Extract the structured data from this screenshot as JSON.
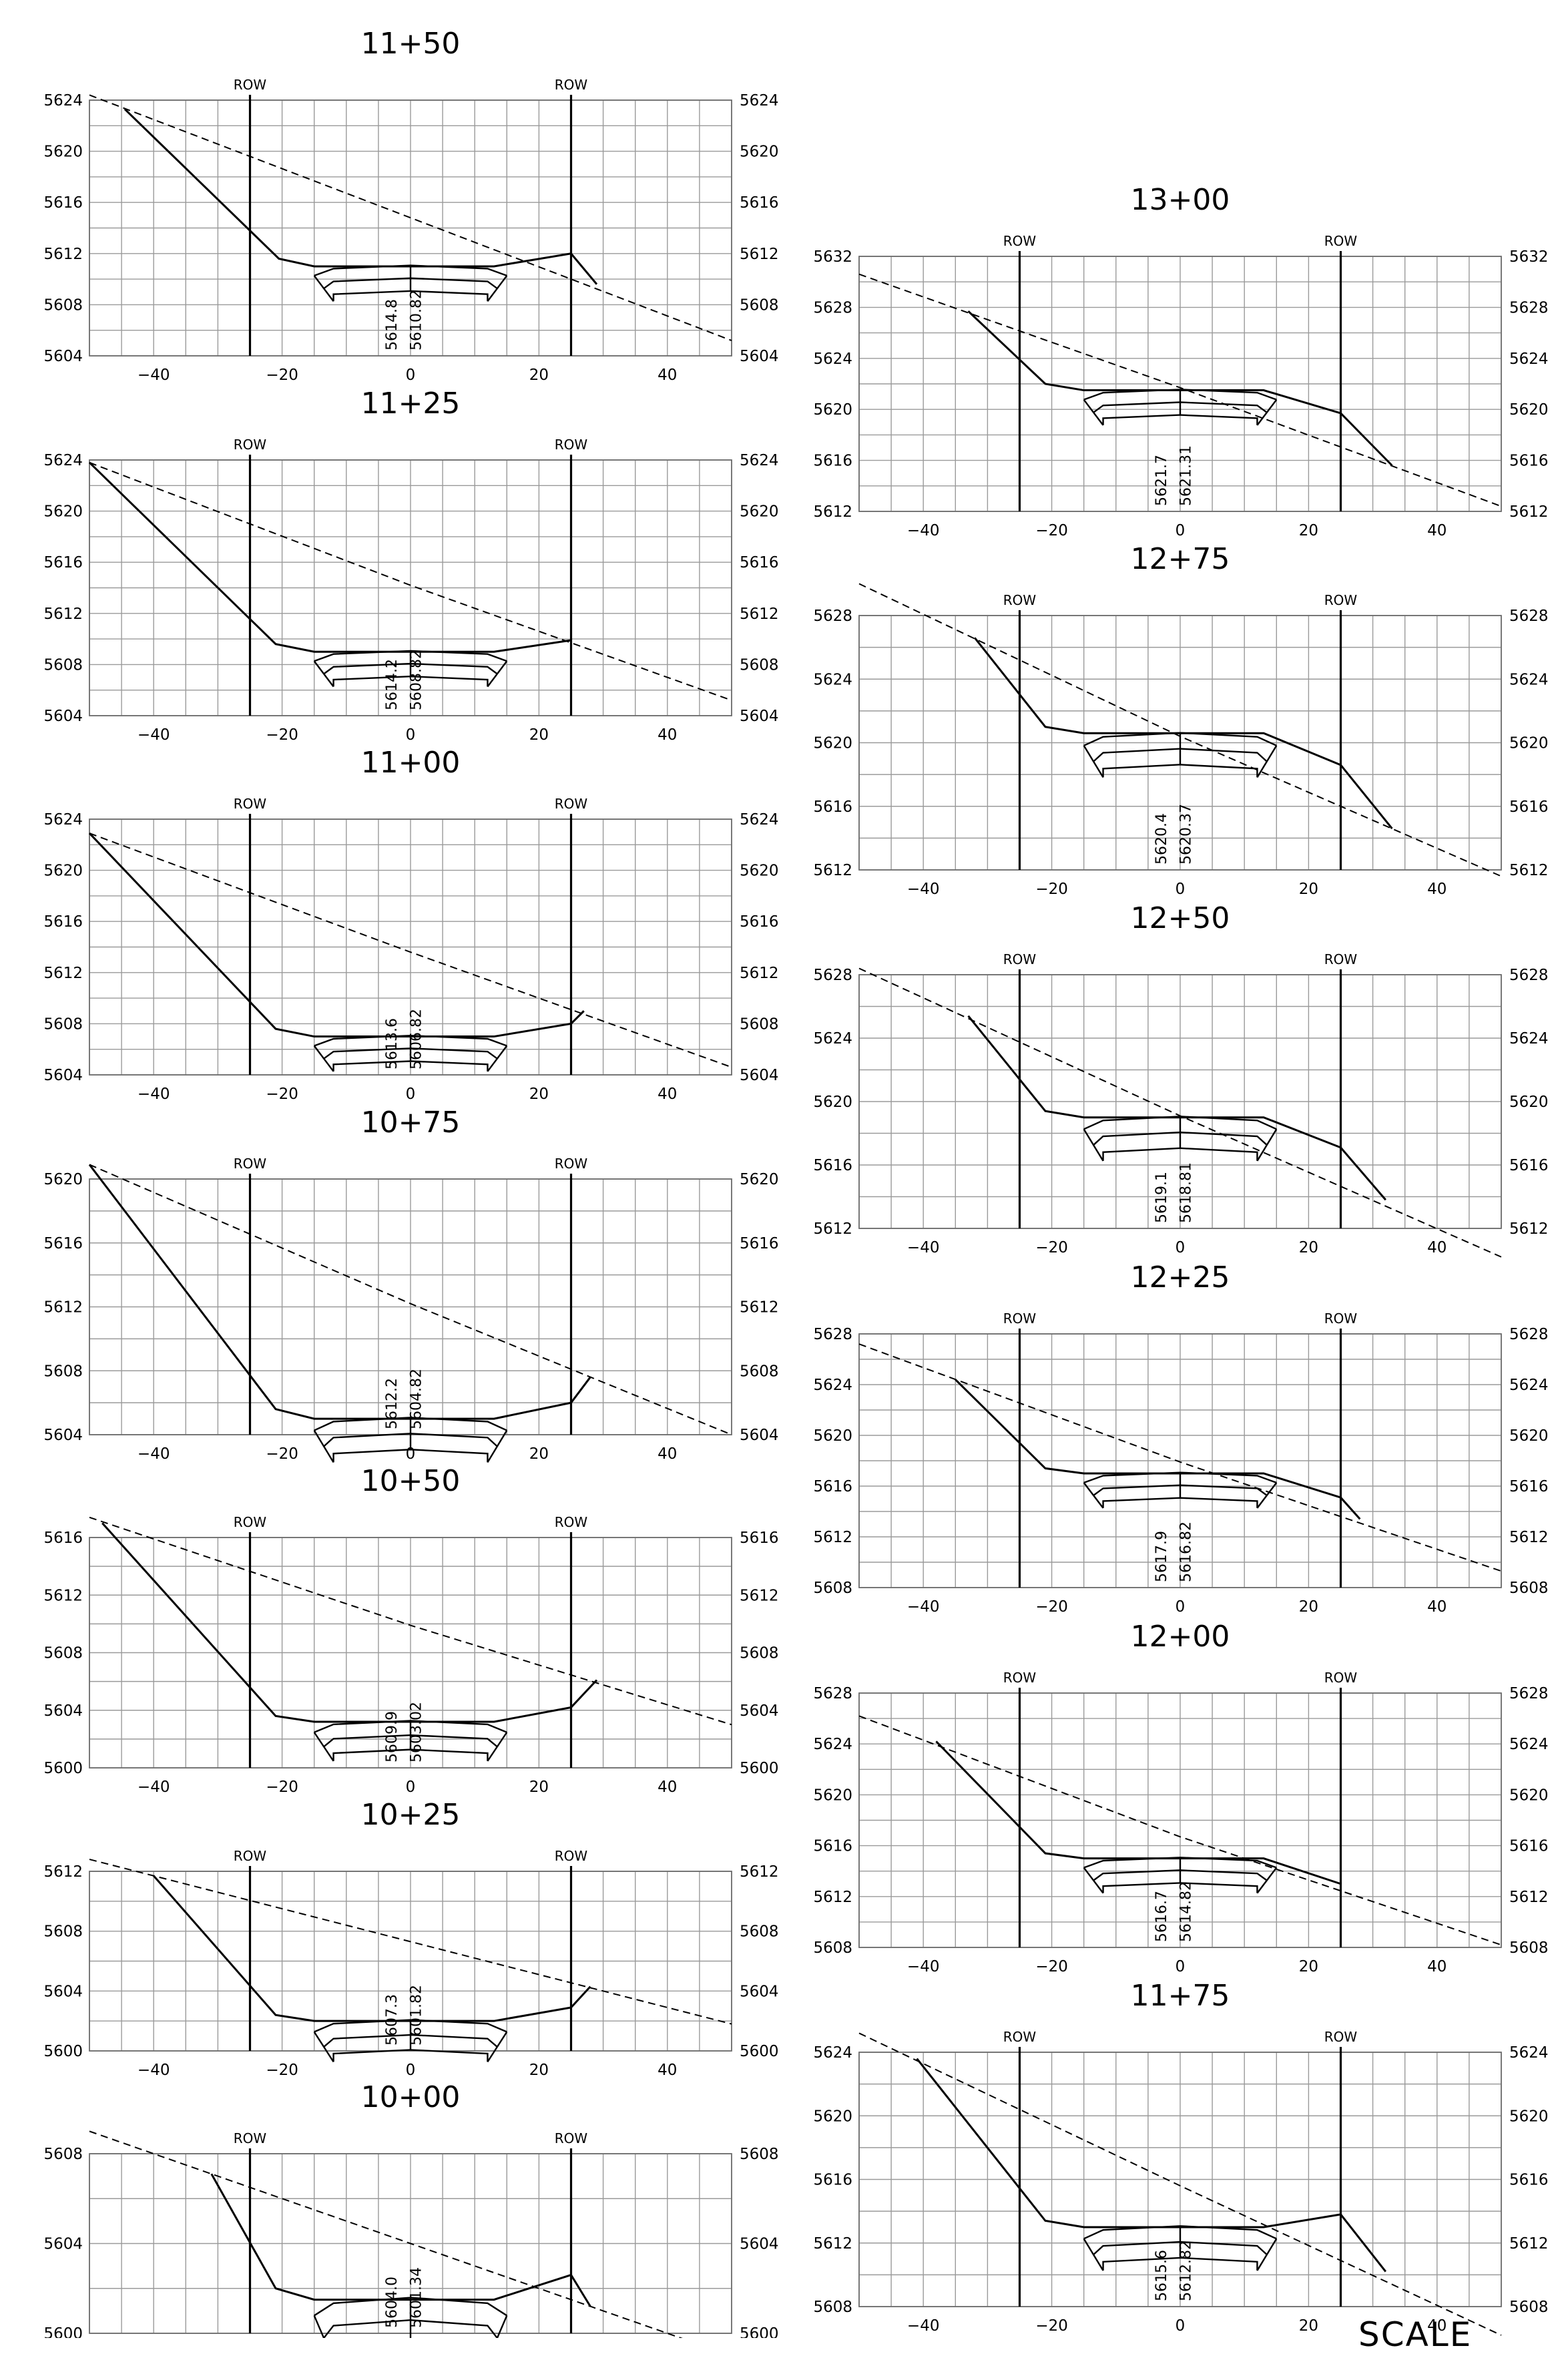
{
  "sheet": {
    "scale_label": "SCALE",
    "row_label": "ROW"
  },
  "sections": [
    {
      "station": "11+50",
      "y_ticks": [
        5604,
        5608,
        5612,
        5616,
        5620,
        5624
      ],
      "x_ticks": [
        -40,
        -20,
        0,
        20,
        40
      ],
      "existing_elev": "5614.8",
      "design_elev": "5610.82",
      "ground_line": [
        [
          -50,
          5624.4
        ],
        [
          0,
          5614.8
        ],
        [
          50,
          5605.2
        ]
      ],
      "design_line": [
        [
          -44.5,
          5623.3
        ],
        [
          -20.5,
          5611.6
        ],
        [
          -15,
          5611.0
        ],
        [
          13,
          5611.0
        ],
        [
          25,
          5612.0
        ],
        [
          29,
          5609.6
        ]
      ],
      "pavement": {
        "top": 5610.82,
        "half_width": 15,
        "thickness": 1.0,
        "layers": 2
      }
    },
    {
      "station": "11+25",
      "y_ticks": [
        5604,
        5608,
        5612,
        5616,
        5620,
        5624
      ],
      "x_ticks": [
        -40,
        -20,
        0,
        20,
        40
      ],
      "existing_elev": "5614.2",
      "design_elev": "5608.82",
      "ground_line": [
        [
          -50,
          5623.8
        ],
        [
          0,
          5614.2
        ],
        [
          50,
          5605.2
        ]
      ],
      "design_line": [
        [
          -50,
          5623.8
        ],
        [
          -21,
          5609.6
        ],
        [
          -15,
          5609.0
        ],
        [
          13,
          5609.0
        ],
        [
          25,
          5609.9
        ]
      ],
      "pavement": {
        "top": 5608.82,
        "half_width": 15,
        "thickness": 1.0,
        "layers": 2
      }
    },
    {
      "station": "11+00",
      "y_ticks": [
        5604,
        5608,
        5612,
        5616,
        5620,
        5624
      ],
      "x_ticks": [
        -40,
        -20,
        0,
        20,
        40
      ],
      "existing_elev": "5613.6",
      "design_elev": "5606.82",
      "ground_line": [
        [
          -50,
          5622.9
        ],
        [
          0,
          5613.6
        ],
        [
          50,
          5604.6
        ]
      ],
      "design_line": [
        [
          -50,
          5622.9
        ],
        [
          -21,
          5607.6
        ],
        [
          -15,
          5607.0
        ],
        [
          13,
          5607.0
        ],
        [
          25,
          5608.0
        ],
        [
          27,
          5609.0
        ]
      ],
      "pavement": {
        "top": 5606.82,
        "half_width": 15,
        "thickness": 1.0,
        "layers": 2
      }
    },
    {
      "station": "10+75",
      "y_ticks": [
        5604,
        5608,
        5612,
        5616,
        5620
      ],
      "x_ticks": [
        -40,
        -20,
        0,
        20,
        40
      ],
      "existing_elev": "5612.2",
      "design_elev": "5604.82",
      "ground_line": [
        [
          -50,
          5620.9
        ],
        [
          0,
          5612.2
        ],
        [
          50,
          5604.0
        ]
      ],
      "design_line": [
        [
          -50,
          5620.9
        ],
        [
          -21,
          5605.6
        ],
        [
          -15,
          5605.0
        ],
        [
          13,
          5605.0
        ],
        [
          25,
          5606.0
        ],
        [
          28,
          5607.6
        ]
      ],
      "pavement": {
        "top": 5604.82,
        "half_width": 15,
        "thickness": 1.0,
        "layers": 2
      }
    },
    {
      "station": "10+50",
      "y_ticks": [
        5600,
        5604,
        5608,
        5612,
        5616
      ],
      "x_ticks": [
        -40,
        -20,
        0,
        20,
        40
      ],
      "existing_elev": "5609.9",
      "design_elev": "5603.02",
      "ground_line": [
        [
          -50,
          5617.4
        ],
        [
          0,
          5609.9
        ],
        [
          50,
          5603.0
        ]
      ],
      "design_line": [
        [
          -48,
          5617.0
        ],
        [
          -21,
          5603.6
        ],
        [
          -15,
          5603.2
        ],
        [
          13,
          5603.2
        ],
        [
          25,
          5604.2
        ],
        [
          29,
          5606.1
        ]
      ],
      "pavement": {
        "top": 5603.02,
        "half_width": 15,
        "thickness": 1.0,
        "layers": 2
      }
    },
    {
      "station": "10+25",
      "y_ticks": [
        5600,
        5604,
        5608,
        5612
      ],
      "x_ticks": [
        -40,
        -20,
        0,
        20,
        40
      ],
      "existing_elev": "5607.3",
      "design_elev": "5601.82",
      "ground_line": [
        [
          -50,
          5612.8
        ],
        [
          0,
          5607.3
        ],
        [
          50,
          5601.8
        ]
      ],
      "design_line": [
        [
          -40,
          5611.7
        ],
        [
          -21,
          5602.4
        ],
        [
          -15,
          5602.0
        ],
        [
          13,
          5602.0
        ],
        [
          25,
          5602.9
        ],
        [
          28,
          5604.3
        ]
      ],
      "pavement": {
        "top": 5601.82,
        "half_width": 15,
        "thickness": 1.0,
        "layers": 2
      }
    },
    {
      "station": "10+00",
      "y_ticks": [
        5600,
        5604,
        5608
      ],
      "x_ticks": [
        -40,
        -20,
        0,
        20,
        40
      ],
      "existing_elev": "5604.0",
      "design_elev": "5601.34",
      "ground_line": [
        [
          -50,
          5609.0
        ],
        [
          0,
          5604.0
        ],
        [
          50,
          5599.0
        ]
      ],
      "design_line": [
        [
          -31,
          5607.1
        ],
        [
          -21,
          5602.0
        ],
        [
          -15,
          5601.5
        ],
        [
          13,
          5601.5
        ],
        [
          25,
          5602.6
        ],
        [
          28,
          5601.2
        ]
      ],
      "pavement": {
        "top": 5601.34,
        "half_width": 15,
        "thickness": 1.0,
        "layers": 2
      }
    },
    {
      "station": "13+00",
      "y_ticks": [
        5612,
        5616,
        5620,
        5624,
        5628,
        5632
      ],
      "x_ticks": [
        -40,
        -20,
        0,
        20,
        40
      ],
      "existing_elev": "5621.7",
      "design_elev": "5621.31",
      "ground_line": [
        [
          -50,
          5630.6
        ],
        [
          0,
          5621.7
        ],
        [
          50,
          5612.4
        ]
      ],
      "design_line": [
        [
          -33,
          5627.7
        ],
        [
          -21,
          5622.0
        ],
        [
          -15,
          5621.5
        ],
        [
          13,
          5621.5
        ],
        [
          25,
          5619.7
        ],
        [
          33,
          5615.6
        ]
      ],
      "pavement": {
        "top": 5621.31,
        "half_width": 15,
        "thickness": 1.0,
        "layers": 2
      }
    },
    {
      "station": "12+75",
      "y_ticks": [
        5612,
        5616,
        5620,
        5624,
        5628
      ],
      "x_ticks": [
        -40,
        -20,
        0,
        20,
        40
      ],
      "existing_elev": "5620.4",
      "design_elev": "5620.37",
      "ground_line": [
        [
          -50,
          5630.0
        ],
        [
          0,
          5620.4
        ],
        [
          50,
          5611.6
        ]
      ],
      "design_line": [
        [
          -32,
          5626.6
        ],
        [
          -21,
          5621.0
        ],
        [
          -15,
          5620.6
        ],
        [
          13,
          5620.6
        ],
        [
          25,
          5618.6
        ],
        [
          33,
          5614.6
        ]
      ],
      "pavement": {
        "top": 5620.37,
        "half_width": 15,
        "thickness": 1.0,
        "layers": 2
      }
    },
    {
      "station": "12+50",
      "y_ticks": [
        5612,
        5616,
        5620,
        5624,
        5628
      ],
      "x_ticks": [
        -40,
        -20,
        0,
        20,
        40
      ],
      "existing_elev": "5619.1",
      "design_elev": "5618.81",
      "ground_line": [
        [
          -50,
          5628.4
        ],
        [
          0,
          5619.1
        ],
        [
          50,
          5610.2
        ]
      ],
      "design_line": [
        [
          -33,
          5625.4
        ],
        [
          -21,
          5619.4
        ],
        [
          -15,
          5619.0
        ],
        [
          13,
          5619.0
        ],
        [
          25,
          5617.1
        ],
        [
          32,
          5613.8
        ]
      ],
      "pavement": {
        "top": 5618.81,
        "half_width": 15,
        "thickness": 1.0,
        "layers": 2
      }
    },
    {
      "station": "12+25",
      "y_ticks": [
        5608,
        5612,
        5616,
        5620,
        5624,
        5628
      ],
      "x_ticks": [
        -40,
        -20,
        0,
        20,
        40
      ],
      "existing_elev": "5617.9",
      "design_elev": "5616.82",
      "ground_line": [
        [
          -50,
          5627.2
        ],
        [
          0,
          5617.9
        ],
        [
          50,
          5609.3
        ]
      ],
      "design_line": [
        [
          -35,
          5624.4
        ],
        [
          -21,
          5617.4
        ],
        [
          -15,
          5617.0
        ],
        [
          13,
          5617.0
        ],
        [
          25,
          5615.1
        ],
        [
          28,
          5613.4
        ]
      ],
      "pavement": {
        "top": 5616.82,
        "half_width": 15,
        "thickness": 1.0,
        "layers": 2
      }
    },
    {
      "station": "12+00",
      "y_ticks": [
        5608,
        5612,
        5616,
        5620,
        5624,
        5628
      ],
      "x_ticks": [
        -40,
        -20,
        0,
        20,
        40
      ],
      "existing_elev": "5616.7",
      "design_elev": "5614.82",
      "ground_line": [
        [
          -50,
          5626.2
        ],
        [
          0,
          5616.7
        ],
        [
          50,
          5608.2
        ]
      ],
      "design_line": [
        [
          -38,
          5624.2
        ],
        [
          -21,
          5615.4
        ],
        [
          -15,
          5615.0
        ],
        [
          13,
          5615.0
        ],
        [
          25,
          5613.0
        ]
      ],
      "pavement": {
        "top": 5614.82,
        "half_width": 15,
        "thickness": 1.0,
        "layers": 2
      }
    },
    {
      "station": "11+75",
      "y_ticks": [
        5608,
        5612,
        5616,
        5620,
        5624
      ],
      "x_ticks": [
        -40,
        -20,
        0,
        20,
        40
      ],
      "existing_elev": "5615.6",
      "design_elev": "5612.82",
      "ground_line": [
        [
          -50,
          5625.2
        ],
        [
          0,
          5615.6
        ],
        [
          50,
          5606.2
        ]
      ],
      "design_line": [
        [
          -41,
          5623.6
        ],
        [
          -21,
          5613.4
        ],
        [
          -15,
          5613.0
        ],
        [
          13,
          5613.0
        ],
        [
          25,
          5613.8
        ],
        [
          32,
          5610.2
        ]
      ],
      "pavement": {
        "top": 5612.82,
        "half_width": 15,
        "thickness": 1.0,
        "layers": 2
      }
    }
  ]
}
